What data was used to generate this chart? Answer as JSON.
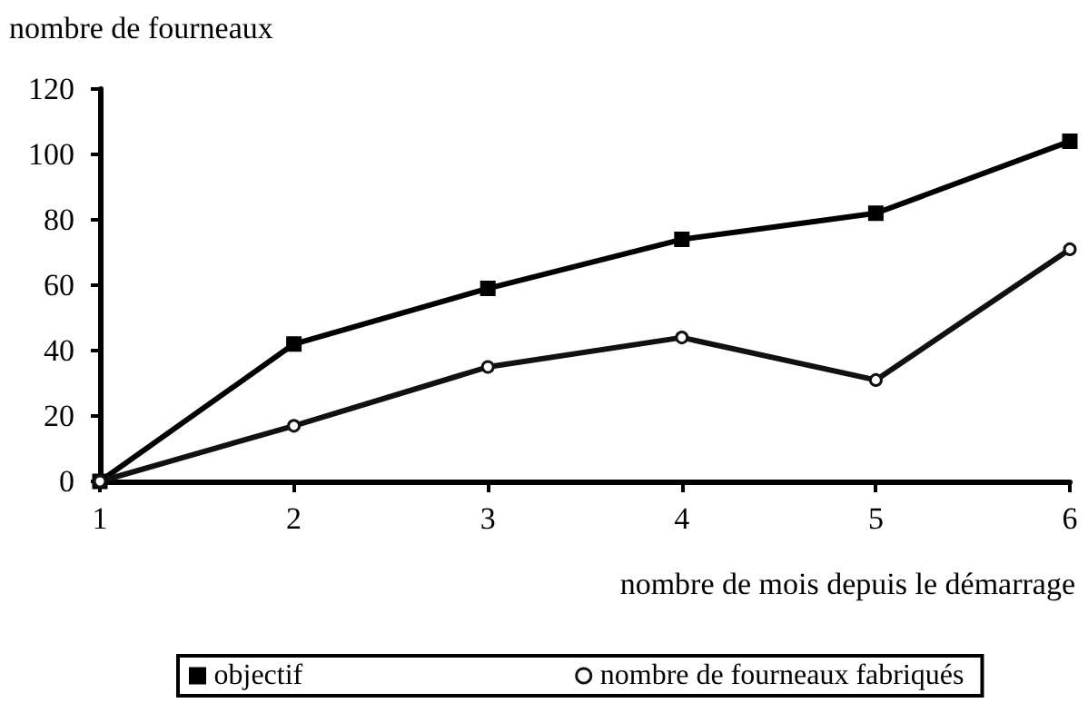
{
  "chart_data": {
    "type": "line",
    "ylabel": "nombre de fourneaux",
    "xlabel": "nombre de mois depuis le démarrage",
    "x": [
      1,
      2,
      3,
      4,
      5,
      6
    ],
    "xlim": [
      1,
      6
    ],
    "xticks": [
      1,
      2,
      3,
      4,
      5,
      6
    ],
    "ylim": [
      0,
      120
    ],
    "yticks": [
      0,
      20,
      40,
      60,
      80,
      100,
      120
    ],
    "series": [
      {
        "name": "objectif",
        "color": "#000000",
        "marker": "square",
        "values": [
          0,
          42,
          59,
          74,
          82,
          104
        ]
      },
      {
        "name": "nombre de fourneaux fabriqués",
        "color": "#111111",
        "marker": "circle",
        "values": [
          0,
          17,
          35,
          44,
          31,
          71
        ]
      }
    ],
    "grid": false,
    "legend": "bottom",
    "line_style": "solid"
  }
}
